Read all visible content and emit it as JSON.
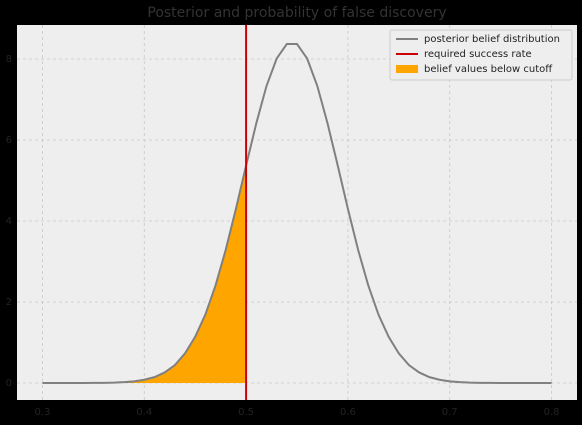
{
  "chart_data": {
    "type": "line",
    "title": "Posterior and probability of false discovery",
    "x": [
      0.3,
      0.31,
      0.32,
      0.33,
      0.34,
      0.35,
      0.36,
      0.37,
      0.38,
      0.39,
      0.4,
      0.41,
      0.42,
      0.43,
      0.44,
      0.45,
      0.46,
      0.47,
      0.48,
      0.49,
      0.5,
      0.51,
      0.52,
      0.53,
      0.54,
      0.55,
      0.56,
      0.57,
      0.58,
      0.59,
      0.6,
      0.61,
      0.62,
      0.63,
      0.64,
      0.65,
      0.66,
      0.67,
      0.68,
      0.69,
      0.7,
      0.71,
      0.72,
      0.73,
      0.74,
      0.75,
      0.76,
      0.77,
      0.78,
      0.79,
      0.8
    ],
    "series": [
      {
        "name": "posterior belief distribution",
        "color": "#808080",
        "values": [
          0,
          0,
          0.0001,
          0.0003,
          0.0007,
          0.0018,
          0.004,
          0.009,
          0.02,
          0.04,
          0.08,
          0.145,
          0.26,
          0.44,
          0.73,
          1.14,
          1.69,
          2.41,
          3.29,
          4.3,
          5.37,
          6.41,
          7.33,
          8.01,
          8.37,
          8.37,
          8.01,
          7.33,
          6.41,
          5.37,
          4.3,
          3.29,
          2.41,
          1.69,
          1.14,
          0.73,
          0.44,
          0.26,
          0.145,
          0.08,
          0.04,
          0.02,
          0.009,
          0.004,
          0.0018,
          0.0007,
          0.0003,
          0.0001,
          0,
          0,
          0
        ]
      }
    ],
    "vline": {
      "name": "required success rate",
      "color": "#cc0000",
      "x": 0.5
    },
    "fill": {
      "name": "belief values below cutoff",
      "color": "#ffa500"
    },
    "xlim": [
      0.275,
      0.825
    ],
    "xticks": [
      0.3,
      0.4,
      0.5,
      0.6,
      0.7,
      0.8
    ],
    "ylim": [
      -0.42,
      8.84
    ],
    "yticks": [
      0,
      2,
      4,
      6,
      8
    ],
    "grid": true,
    "legend": "upper right"
  }
}
